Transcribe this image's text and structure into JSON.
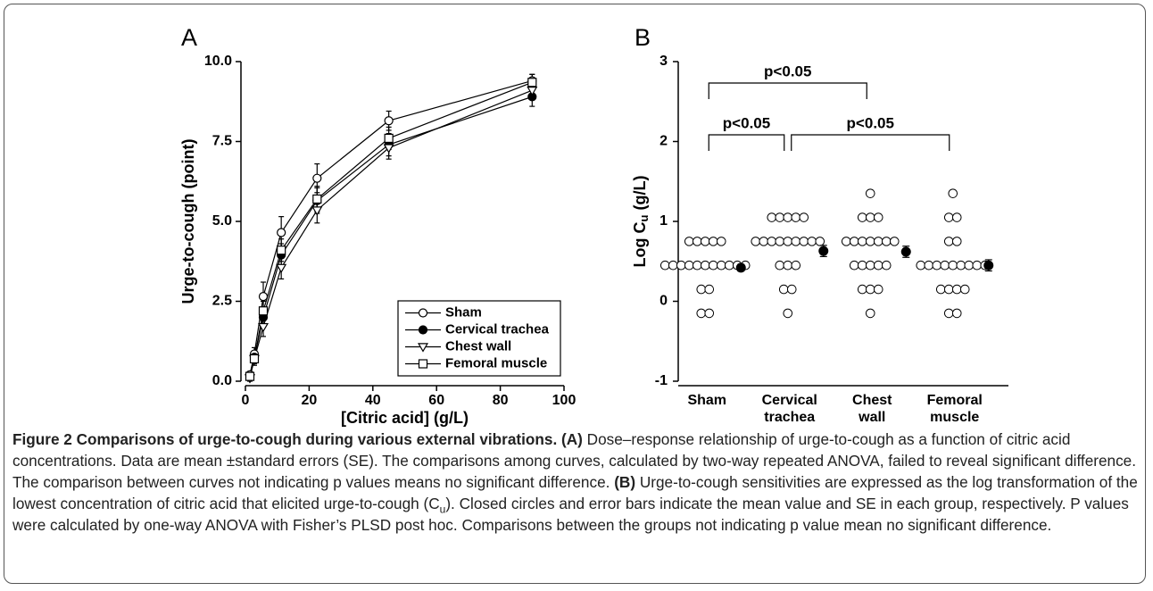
{
  "chart_data": [
    {
      "type": "line",
      "panel": "A",
      "xlabel": "[Citric acid] (g/L)",
      "ylabel": "Urge-to-cough (point)",
      "x": [
        1.4,
        2.8,
        5.6,
        11.25,
        22.5,
        45,
        90
      ],
      "xlim": [
        0,
        100
      ],
      "xticks": [
        0,
        20,
        40,
        60,
        80,
        100
      ],
      "ylim": [
        0,
        10
      ],
      "yticks": [
        {
          "value": 0,
          "label": "0.0"
        },
        {
          "value": 2.5,
          "label": "2.5"
        },
        {
          "value": 5,
          "label": "5.0"
        },
        {
          "value": 7.5,
          "label": "7.5"
        },
        {
          "value": 10,
          "label": "10.0"
        }
      ],
      "legend": "lower right",
      "series": [
        {
          "name": "Sham",
          "color": "#000000",
          "marker": "circle",
          "filled": false,
          "values": [
            0.2,
            0.85,
            2.65,
            4.65,
            6.35,
            8.15,
            9.4
          ],
          "errors": [
            0.1,
            0.2,
            0.45,
            0.5,
            0.45,
            0.3,
            0.2
          ]
        },
        {
          "name": "Cervical trachea",
          "color": "#000000",
          "marker": "circle",
          "filled": true,
          "values": [
            0.15,
            0.75,
            2.0,
            3.95,
            5.65,
            7.4,
            8.9
          ],
          "errors": [
            0.1,
            0.2,
            0.3,
            0.35,
            0.4,
            0.35,
            0.3
          ]
        },
        {
          "name": "Chest wall",
          "color": "#000000",
          "marker": "triangle-down",
          "filled": false,
          "values": [
            0.1,
            0.7,
            1.7,
            3.55,
            5.35,
            7.3,
            9.1
          ],
          "errors": [
            0.1,
            0.2,
            0.3,
            0.35,
            0.4,
            0.35,
            0.25
          ]
        },
        {
          "name": "Femoral muscle",
          "color": "#000000",
          "marker": "square",
          "filled": false,
          "values": [
            0.15,
            0.7,
            2.2,
            4.1,
            5.7,
            7.6,
            9.35
          ],
          "errors": [
            0.1,
            0.2,
            0.3,
            0.35,
            0.4,
            0.35,
            0.25
          ]
        }
      ]
    },
    {
      "type": "strip",
      "panel": "B",
      "ylabel": {
        "text": "Log C",
        "sub": "u",
        "unit": "(g/L)"
      },
      "categories": [
        [
          "Sham"
        ],
        [
          "Cervical",
          "trachea"
        ],
        [
          "Chest",
          "wall"
        ],
        [
          "Femoral",
          "muscle"
        ]
      ],
      "ylim": [
        -1,
        3
      ],
      "yticks": [
        -1,
        0,
        1,
        2,
        3
      ],
      "values": [
        [
          0.75,
          0.75,
          0.75,
          0.75,
          0.75,
          0.45,
          0.45,
          0.45,
          0.45,
          0.45,
          0.45,
          0.45,
          0.45,
          0.45,
          0.45,
          0.45,
          0.15,
          0.15,
          -0.15,
          -0.15
        ],
        [
          1.05,
          1.05,
          1.05,
          1.05,
          1.05,
          0.75,
          0.75,
          0.75,
          0.75,
          0.75,
          0.75,
          0.75,
          0.75,
          0.75,
          0.45,
          0.45,
          0.45,
          0.15,
          0.15,
          -0.15
        ],
        [
          1.35,
          1.05,
          1.05,
          1.05,
          0.75,
          0.75,
          0.75,
          0.75,
          0.75,
          0.75,
          0.75,
          0.45,
          0.45,
          0.45,
          0.45,
          0.45,
          0.15,
          0.15,
          0.15,
          -0.15
        ],
        [
          1.35,
          1.05,
          1.05,
          0.75,
          0.75,
          0.45,
          0.45,
          0.45,
          0.45,
          0.45,
          0.45,
          0.45,
          0.45,
          0.45,
          0.15,
          0.15,
          0.15,
          0.15,
          -0.15,
          -0.15
        ]
      ],
      "means": [
        0.42,
        0.63,
        0.62,
        0.45
      ],
      "errors": [
        0.04,
        0.07,
        0.07,
        0.07
      ],
      "comparisons": [
        {
          "from": 0,
          "to": 1,
          "label": "p<0.05"
        },
        {
          "from": 1,
          "to": 3,
          "label": "p<0.05"
        },
        {
          "from": 0,
          "to": 2,
          "label": "p<0.05"
        }
      ]
    }
  ],
  "caption": {
    "title": "Figure 2 Comparisons of urge-to-cough during various external vibrations.",
    "runs": [
      {
        "text": "(A)",
        "bold": true
      },
      {
        "text": " Dose–response relationship of urge-to-cough as a function of citric acid concentrations. Data are mean ±standard errors (SE). The comparisons among curves, calculated by two-way repeated ANOVA, failed to reveal significant difference. The comparison between curves not indicating p values means no significant difference. "
      },
      {
        "text": "(B)",
        "bold": true
      },
      {
        "text": " Urge-to-cough sensitivities are expressed as the log transformation of the lowest concentration of citric acid that elicited urge-to-cough (C"
      },
      {
        "text": "u",
        "sub": true
      },
      {
        "text": "). Closed circles and error bars indicate the mean value and SE in each group, respectively. P values were calculated by one-way ANOVA with Fisher’s PLSD post hoc. Comparisons between the groups not indicating p value mean no significant difference."
      }
    ]
  }
}
